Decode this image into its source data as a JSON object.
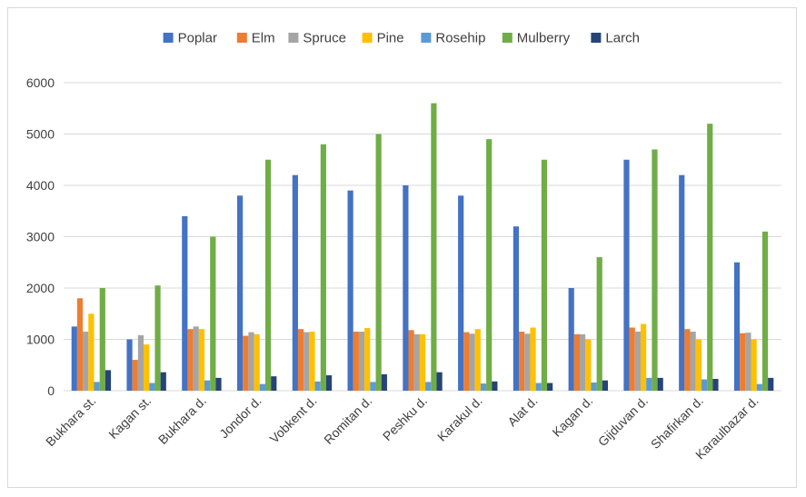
{
  "chart_data": {
    "type": "bar",
    "title": "",
    "xlabel": "",
    "ylabel": "",
    "ylim": [
      0,
      6000
    ],
    "yticks": [
      0,
      1000,
      2000,
      3000,
      4000,
      5000,
      6000
    ],
    "grid": "horizontal",
    "legend": "top",
    "categories": [
      "Bukhara st.",
      "Kagan st.",
      "Bukhara d.",
      "Jondor d.",
      "Vobkent d.",
      "Romitan d.",
      "Peshku d.",
      "Karakul d.",
      "Alat d.",
      "Kagan d.",
      "Gijduvan d.",
      "Shafirkan d.",
      "Karaulbazar d."
    ],
    "series": [
      {
        "name": "Poplar",
        "color": "#4472c4",
        "values": [
          1250,
          1000,
          3400,
          3800,
          4200,
          3900,
          4000,
          3800,
          3200,
          2000,
          4500,
          4200,
          2500
        ]
      },
      {
        "name": "Elm",
        "color": "#ed7d31",
        "values": [
          1800,
          600,
          1200,
          1070,
          1200,
          1150,
          1180,
          1140,
          1150,
          1100,
          1230,
          1200,
          1120
        ]
      },
      {
        "name": "Spruce",
        "color": "#a5a5a5",
        "values": [
          1150,
          1080,
          1250,
          1140,
          1140,
          1150,
          1100,
          1110,
          1110,
          1100,
          1150,
          1150,
          1130
        ]
      },
      {
        "name": "Pine",
        "color": "#ffc000",
        "values": [
          1500,
          900,
          1200,
          1100,
          1150,
          1220,
          1100,
          1200,
          1230,
          1000,
          1300,
          1000,
          1000
        ]
      },
      {
        "name": "Rosehip",
        "color": "#5b9bd5",
        "values": [
          170,
          150,
          200,
          130,
          180,
          170,
          170,
          140,
          150,
          160,
          250,
          220,
          130
        ]
      },
      {
        "name": "Mulberry",
        "color": "#70ad47",
        "values": [
          2000,
          2050,
          3000,
          4500,
          4800,
          5000,
          5600,
          4900,
          4500,
          2600,
          4700,
          5200,
          3100
        ]
      },
      {
        "name": "Larch",
        "color": "#264478",
        "values": [
          400,
          360,
          250,
          280,
          300,
          320,
          360,
          180,
          150,
          200,
          250,
          230,
          250
        ]
      }
    ]
  }
}
